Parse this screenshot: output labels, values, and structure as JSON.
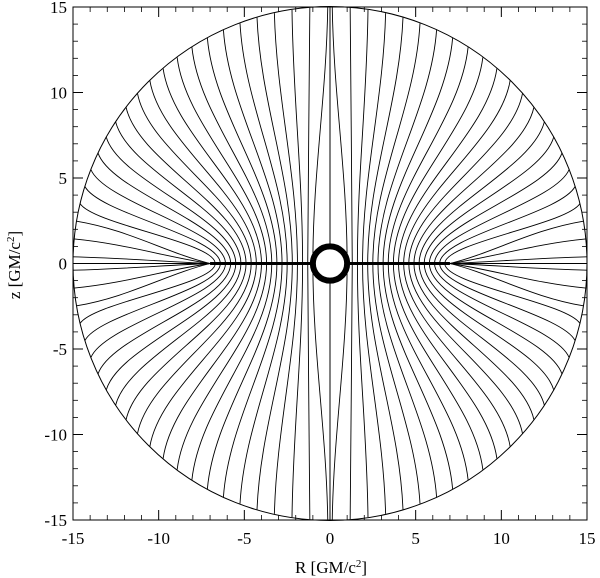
{
  "chart_data": {
    "type": "line",
    "title": "",
    "xlabel": "R [GM/c^2]",
    "ylabel": "z [GM/c^2]",
    "xlabel_parts": {
      "pre": "R [GM/c",
      "sup": "2",
      "post": "]"
    },
    "ylabel_parts": {
      "pre": "z [GM/c",
      "sup": "2",
      "post": "]"
    },
    "xlim": [
      -15,
      15
    ],
    "ylim": [
      -15,
      15
    ],
    "xticks": [
      -15,
      -10,
      -5,
      0,
      5,
      10,
      15
    ],
    "yticks": [
      -15,
      -10,
      -5,
      0,
      5,
      10,
      15
    ],
    "xtick_labels": [
      "-15",
      "-10",
      "-5",
      "0",
      "5",
      "10",
      "15"
    ],
    "ytick_labels": [
      "-15",
      "-10",
      "-5",
      "0",
      "5",
      "10",
      "15"
    ],
    "boundary_radius": 15,
    "black_hole_radius": 1,
    "disk_extent": [
      -7,
      7
    ],
    "field_lines": {
      "count_per_quadrant": 20,
      "footpoints_R": [
        1.0,
        1.3,
        1.6,
        1.9,
        2.2,
        2.5,
        2.8,
        3.1,
        3.4,
        3.7,
        4.0,
        4.3,
        4.6,
        4.9,
        5.2,
        5.5,
        5.8,
        6.1,
        6.4,
        6.7
      ],
      "outer_angles_deg": [
        89.5,
        85.5,
        81.5,
        77.5,
        73.5,
        69.5,
        65.5,
        61.5,
        57.5,
        53.5,
        49.5,
        45.5,
        41.5,
        37.5,
        33.5,
        29.5,
        25.5,
        21.5,
        17.5,
        13.5
      ],
      "extra_equatorial_lines_angles_deg": [
        9.5,
        5.5,
        1.5
      ]
    },
    "grid": false,
    "legend": "none"
  }
}
